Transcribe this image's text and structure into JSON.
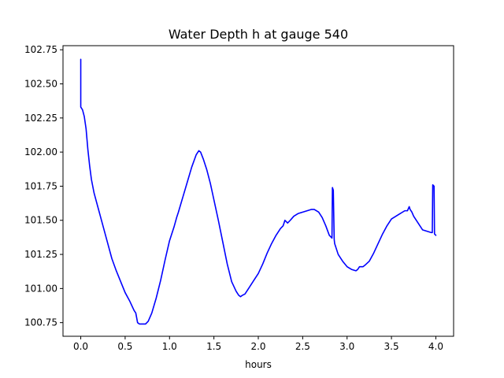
{
  "chart_data": {
    "type": "line",
    "title": "Water Depth h at gauge 540",
    "xlabel": "hours",
    "ylabel": "",
    "xlim": [
      -0.2,
      4.2
    ],
    "ylim": [
      100.65,
      102.78
    ],
    "x_ticks": [
      0.0,
      0.5,
      1.0,
      1.5,
      2.0,
      2.5,
      3.0,
      3.5,
      4.0
    ],
    "x_tick_labels": [
      "0.0",
      "0.5",
      "1.0",
      "1.5",
      "2.0",
      "2.5",
      "3.0",
      "3.5",
      "4.0"
    ],
    "y_ticks": [
      100.75,
      101.0,
      101.25,
      101.5,
      101.75,
      102.0,
      102.25,
      102.5,
      102.75
    ],
    "y_tick_labels": [
      "100.75",
      "101.00",
      "101.25",
      "101.50",
      "101.75",
      "102.00",
      "102.25",
      "102.50",
      "102.75"
    ],
    "grid": false,
    "legend": "none",
    "series": [
      {
        "color": "#0000ff",
        "x": [
          0.0,
          0.0,
          0.02,
          0.04,
          0.06,
          0.08,
          0.1,
          0.12,
          0.15,
          0.2,
          0.25,
          0.3,
          0.35,
          0.4,
          0.45,
          0.5,
          0.55,
          0.6,
          0.62,
          0.64,
          0.66,
          0.7,
          0.73,
          0.76,
          0.8,
          0.85,
          0.9,
          0.95,
          1.0,
          1.05,
          1.08,
          1.1,
          1.15,
          1.2,
          1.25,
          1.3,
          1.33,
          1.35,
          1.38,
          1.42,
          1.46,
          1.5,
          1.55,
          1.6,
          1.65,
          1.7,
          1.75,
          1.78,
          1.8,
          1.82,
          1.85,
          1.9,
          1.95,
          2.0,
          2.05,
          2.1,
          2.15,
          2.2,
          2.25,
          2.28,
          2.3,
          2.33,
          2.36,
          2.4,
          2.45,
          2.5,
          2.55,
          2.6,
          2.63,
          2.68,
          2.72,
          2.76,
          2.8,
          2.83,
          2.835,
          2.845,
          2.855,
          2.86,
          2.9,
          2.95,
          3.0,
          3.05,
          3.1,
          3.12,
          3.14,
          3.16,
          3.18,
          3.2,
          3.25,
          3.3,
          3.35,
          3.4,
          3.45,
          3.5,
          3.55,
          3.6,
          3.65,
          3.68,
          3.7,
          3.71,
          3.73,
          3.75,
          3.8,
          3.85,
          3.9,
          3.95,
          3.96,
          3.965,
          3.98,
          3.985,
          4.0
        ],
        "y": [
          102.68,
          102.33,
          102.31,
          102.26,
          102.17,
          102.02,
          101.9,
          101.8,
          101.7,
          101.58,
          101.46,
          101.34,
          101.22,
          101.13,
          101.05,
          100.97,
          100.91,
          100.84,
          100.82,
          100.75,
          100.74,
          100.74,
          100.74,
          100.76,
          100.82,
          100.93,
          101.06,
          101.21,
          101.35,
          101.45,
          101.52,
          101.56,
          101.67,
          101.78,
          101.89,
          101.98,
          102.01,
          102.0,
          101.95,
          101.87,
          101.77,
          101.65,
          101.5,
          101.34,
          101.18,
          101.05,
          100.98,
          100.95,
          100.94,
          100.95,
          100.96,
          101.01,
          101.06,
          101.11,
          101.18,
          101.26,
          101.33,
          101.39,
          101.44,
          101.46,
          101.5,
          101.48,
          101.5,
          101.53,
          101.55,
          101.56,
          101.57,
          101.58,
          101.58,
          101.56,
          101.52,
          101.46,
          101.39,
          101.37,
          101.74,
          101.72,
          101.36,
          101.33,
          101.25,
          101.2,
          101.16,
          101.14,
          101.13,
          101.14,
          101.16,
          101.16,
          101.16,
          101.17,
          101.2,
          101.26,
          101.33,
          101.4,
          101.46,
          101.51,
          101.53,
          101.55,
          101.57,
          101.57,
          101.6,
          101.58,
          101.56,
          101.53,
          101.48,
          101.43,
          101.42,
          101.41,
          101.41,
          101.76,
          101.75,
          101.4,
          101.39
        ]
      }
    ]
  }
}
